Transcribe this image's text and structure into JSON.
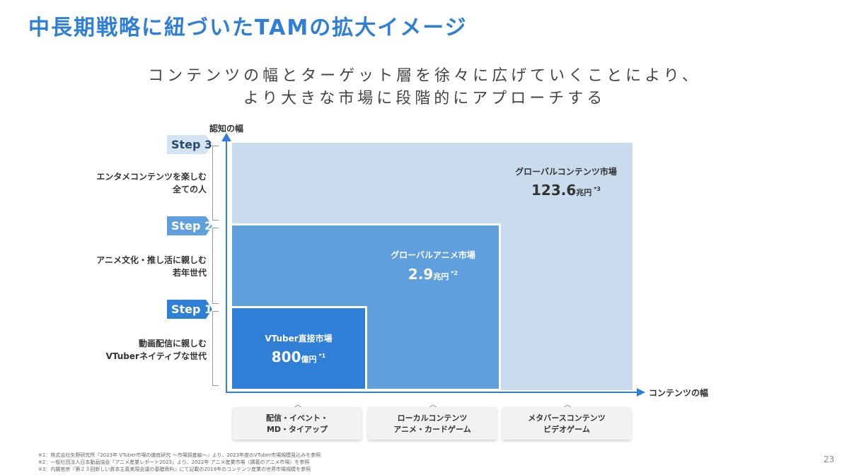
{
  "title": "中長期戦略に紐づいたTAMの拡大イメージ",
  "subtitle": {
    "line1": "コンテンツの幅とターゲット層を徐々に広げていくことにより、",
    "line2": "より大きな市場に段階的にアプローチする"
  },
  "axes": {
    "y_label": "認知の幅",
    "x_label": "コンテンツの幅"
  },
  "steps": [
    {
      "label": "Step 3",
      "audience": [
        "エンタメコンテンツを楽しむ",
        "全ての人"
      ]
    },
    {
      "label": "Step 2",
      "audience": [
        "アニメ文化・推し活に親しむ",
        "若年世代"
      ]
    },
    {
      "label": "Step 1",
      "audience": [
        "動画配信に親しむ",
        "VTuberネイティブな世代"
      ]
    }
  ],
  "markets": {
    "global": {
      "name": "グローバルコンテンツ市場",
      "value": "123.6",
      "unit": "兆円",
      "note": "*3"
    },
    "anime": {
      "name": "グローバルアニメ市場",
      "value": "2.9",
      "unit": "兆円",
      "note": "*2"
    },
    "vtuber": {
      "name": "VTuber直接市場",
      "value": "800",
      "unit": "億円",
      "note": "*1"
    }
  },
  "categories": [
    {
      "lines": [
        "配信・イベント・",
        "MD・タイアップ"
      ]
    },
    {
      "lines": [
        "ローカルコンテンツ",
        "アニメ・カードゲーム"
      ]
    },
    {
      "lines": [
        "メタバースコンテンツ",
        "ビデオゲーム"
      ]
    }
  ],
  "footnotes": [
    "※1：株式会社矢野研究所『2023年 VTuber市場の徹底研究 ～市場調査編～』より、2023年度のVTuber市場規模見込みを参照",
    "※2：一般社団法人日本動画協会『アニメ産業レポート2023』より、2022年 アニメ産業市場（講義のアニメ市場）を参照",
    "※3：内閣官房『第２３回新しい資本主義実現会議の基礎資料』にて記載の2019年のコンテンツ産業の世界市場規模を参照"
  ],
  "page_number": "23",
  "colors": {
    "accent": "#2f7fd6",
    "step2": "#5f9fde",
    "step3": "#c9dcee"
  }
}
